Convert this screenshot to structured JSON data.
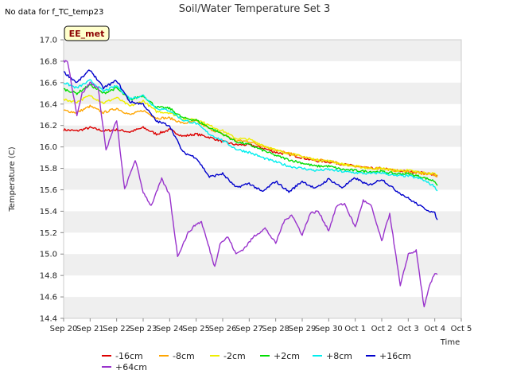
{
  "chart_data": {
    "type": "line",
    "title": "Soil/Water Temperature Set 3",
    "no_data_note": "No data for f_TC_temp23",
    "site_badge": "EE_met",
    "xlabel": "Time",
    "ylabel": "Temperature (C)",
    "ylim": [
      14.4,
      17.0
    ],
    "yticks": [
      "14.4",
      "14.6",
      "14.8",
      "15.0",
      "15.2",
      "15.4",
      "15.6",
      "15.8",
      "16.0",
      "16.2",
      "16.4",
      "16.6",
      "16.8",
      "17.0"
    ],
    "xlim_days": [
      0,
      15
    ],
    "x_unit": "days since Sep 20",
    "xticks": [
      "Sep 20",
      "Sep 21",
      "Sep 22",
      "Sep 23",
      "Sep 24",
      "Sep 25",
      "Sep 26",
      "Sep 27",
      "Sep 28",
      "Sep 29",
      "Sep 30",
      "Oct 1",
      "Oct 2",
      "Oct 3",
      "Oct 4",
      "Oct 5"
    ],
    "grid": "horizontal bands",
    "legend_position": "bottom",
    "series": [
      {
        "name": "-16cm",
        "color": "#dd0000",
        "x": [
          0,
          0.5,
          1,
          1.5,
          2,
          2.5,
          3,
          3.5,
          4,
          4.5,
          5,
          5.5,
          6,
          6.5,
          7,
          7.5,
          8,
          8.5,
          9,
          9.5,
          10,
          10.5,
          11,
          11.5,
          12,
          12.5,
          13,
          13.5,
          14,
          14.1
        ],
        "y": [
          16.16,
          16.15,
          16.18,
          16.15,
          16.16,
          16.14,
          16.18,
          16.12,
          16.16,
          16.1,
          16.12,
          16.09,
          16.05,
          16.02,
          16.02,
          15.99,
          15.95,
          15.93,
          15.9,
          15.87,
          15.86,
          15.84,
          15.82,
          15.8,
          15.8,
          15.78,
          15.77,
          15.76,
          15.74,
          15.73
        ]
      },
      {
        "name": "-8cm",
        "color": "#ffa500",
        "x": [
          0,
          0.5,
          1,
          1.5,
          2,
          2.5,
          3,
          3.5,
          4,
          4.5,
          5,
          5.5,
          6,
          6.5,
          7,
          7.5,
          8,
          8.5,
          9,
          9.5,
          10,
          10.5,
          11,
          11.5,
          12,
          12.5,
          13,
          13.5,
          14,
          14.1
        ],
        "y": [
          16.34,
          16.32,
          16.38,
          16.32,
          16.36,
          16.3,
          16.34,
          16.27,
          16.27,
          16.22,
          16.24,
          16.17,
          16.12,
          16.06,
          16.05,
          16.01,
          15.97,
          15.94,
          15.91,
          15.88,
          15.87,
          15.84,
          15.82,
          15.8,
          15.8,
          15.78,
          15.77,
          15.75,
          15.74,
          15.72
        ]
      },
      {
        "name": "-2cm",
        "color": "#eeee00",
        "x": [
          0,
          0.5,
          1,
          1.5,
          2,
          2.5,
          3,
          3.5,
          4,
          4.5,
          5,
          5.5,
          6,
          6.5,
          7,
          7.5,
          8,
          8.5,
          9,
          9.5,
          10,
          10.5,
          11,
          11.5,
          12,
          12.5,
          13,
          13.5,
          14,
          14.1
        ],
        "y": [
          16.44,
          16.42,
          16.48,
          16.41,
          16.46,
          16.38,
          16.43,
          16.33,
          16.32,
          16.26,
          16.26,
          16.2,
          16.15,
          16.08,
          16.07,
          16.02,
          15.97,
          15.94,
          15.91,
          15.88,
          15.87,
          15.84,
          15.82,
          15.8,
          15.8,
          15.78,
          15.78,
          15.76,
          15.75,
          15.74
        ]
      },
      {
        "name": "+2cm",
        "color": "#00dd00",
        "x": [
          0,
          0.5,
          1,
          1.5,
          2,
          2.5,
          3,
          3.5,
          4,
          4.5,
          5,
          5.5,
          6,
          6.5,
          7,
          7.5,
          8,
          8.5,
          9,
          9.5,
          10,
          10.5,
          11,
          11.5,
          12,
          12.5,
          13,
          13.5,
          14,
          14.1
        ],
        "y": [
          16.54,
          16.5,
          16.58,
          16.5,
          16.55,
          16.44,
          16.48,
          16.37,
          16.36,
          16.27,
          16.25,
          16.18,
          16.12,
          16.05,
          16.02,
          15.97,
          15.92,
          15.88,
          15.85,
          15.82,
          15.82,
          15.79,
          15.78,
          15.77,
          15.77,
          15.75,
          15.75,
          15.72,
          15.68,
          15.64
        ]
      },
      {
        "name": "+8cm",
        "color": "#00eeee",
        "x": [
          0,
          0.5,
          1,
          1.5,
          2,
          2.5,
          3,
          3.5,
          4,
          4.5,
          5,
          5.5,
          6,
          6.5,
          7,
          7.5,
          8,
          8.5,
          9,
          9.5,
          10,
          10.5,
          11,
          11.5,
          12,
          12.5,
          13,
          13.5,
          14,
          14.1
        ],
        "y": [
          16.6,
          16.55,
          16.62,
          16.52,
          16.57,
          16.45,
          16.48,
          16.36,
          16.34,
          16.25,
          16.22,
          16.12,
          16.06,
          15.98,
          15.95,
          15.9,
          15.86,
          15.82,
          15.8,
          15.78,
          15.79,
          15.77,
          15.76,
          15.75,
          15.76,
          15.73,
          15.73,
          15.7,
          15.63,
          15.59
        ]
      },
      {
        "name": "+16cm",
        "color": "#0000cc",
        "x": [
          0,
          0.5,
          1,
          1.5,
          2,
          2.5,
          3,
          3.5,
          4,
          4.5,
          5,
          5.5,
          6,
          6.5,
          7,
          7.5,
          8,
          8.5,
          9,
          9.5,
          10,
          10.5,
          11,
          11.5,
          12,
          12.5,
          13,
          13.5,
          14,
          14.1
        ],
        "y": [
          16.7,
          16.6,
          16.72,
          16.55,
          16.62,
          16.42,
          16.4,
          16.24,
          16.2,
          15.95,
          15.9,
          15.72,
          15.75,
          15.62,
          15.66,
          15.58,
          15.68,
          15.58,
          15.68,
          15.61,
          15.7,
          15.62,
          15.71,
          15.64,
          15.7,
          15.6,
          15.52,
          15.44,
          15.38,
          15.32
        ]
      },
      {
        "name": "+64cm",
        "color": "#9933cc",
        "x": [
          0,
          0.15,
          0.5,
          0.7,
          1,
          1.3,
          1.6,
          2,
          2.3,
          2.7,
          3,
          3.3,
          3.7,
          4,
          4.3,
          4.7,
          5,
          5.2,
          5.7,
          5.9,
          6.2,
          6.5,
          6.8,
          7.2,
          7.6,
          8,
          8.3,
          8.6,
          9.0,
          9.3,
          9.6,
          10.0,
          10.3,
          10.6,
          11.0,
          11.3,
          11.6,
          12.0,
          12.3,
          12.7,
          13.0,
          13.3,
          13.6,
          13.8,
          14.0,
          14.1
        ],
        "y": [
          16.8,
          16.8,
          16.3,
          16.5,
          16.6,
          16.55,
          15.97,
          16.25,
          15.6,
          15.88,
          15.58,
          15.45,
          15.7,
          15.55,
          14.98,
          15.2,
          15.28,
          15.3,
          14.88,
          15.1,
          15.16,
          15.0,
          15.05,
          15.17,
          15.24,
          15.1,
          15.3,
          15.37,
          15.18,
          15.38,
          15.4,
          15.22,
          15.45,
          15.47,
          15.25,
          15.5,
          15.45,
          15.12,
          15.38,
          14.7,
          15.0,
          15.03,
          14.5,
          14.7,
          14.82,
          14.81
        ]
      }
    ]
  }
}
